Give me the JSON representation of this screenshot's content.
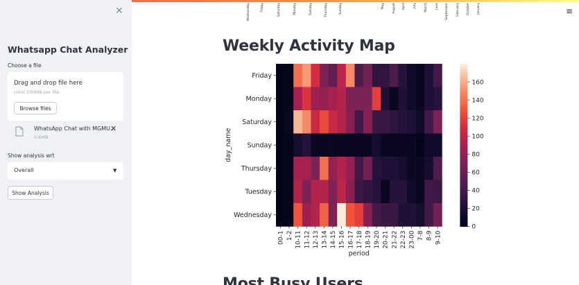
{
  "sidebar": {
    "title": "Whatsapp Chat Analyzer",
    "choose_file_label": "Choose a file",
    "uploader": {
      "drag_text": "Drag and drop file here",
      "limit_text": "Limit 200MB per file",
      "browse_label": "Browse files"
    },
    "file": {
      "name": "WhatsApp Chat with MGMU...",
      "size": "0.6MB"
    },
    "analysis_label": "Show analysis wrt",
    "analysis_select": {
      "value": "Overall"
    },
    "show_button": "Show Analysis"
  },
  "previous_chart_labels": [
    "Wednesday",
    "Friday",
    "Saturday",
    "Monday",
    "Tuesday",
    "Thursday",
    "Sunday",
    "May",
    "August",
    "April",
    "July",
    "March",
    "June",
    "September",
    "February",
    "October",
    "January"
  ],
  "main": {
    "heading": "Weekly Activity Map",
    "next_heading": "Most Busy Users"
  },
  "icons": {
    "close": "close-icon",
    "menu": "hamburger-menu-icon",
    "file": "file-icon",
    "remove": "remove-x-icon",
    "caret": "chevron-down-icon"
  },
  "chart_data": {
    "type": "heatmap",
    "title": "",
    "xlabel": "period",
    "ylabel": "day_name",
    "x": [
      "00-1",
      "1-2",
      "10-11",
      "11-12",
      "12-13",
      "13-14",
      "14-15",
      "15-16",
      "16-17",
      "17-18",
      "18-19",
      "19-20",
      "20-21",
      "21-22",
      "22-23",
      "23-00",
      "7-8",
      "8-9",
      "9-10"
    ],
    "y": [
      "Friday",
      "Monday",
      "Saturday",
      "Sunday",
      "Thursday",
      "Tuesday",
      "Wednesday"
    ],
    "values": [
      [
        0,
        0,
        140,
        155,
        110,
        70,
        55,
        100,
        150,
        45,
        65,
        30,
        30,
        45,
        25,
        10,
        5,
        20,
        40
      ],
      [
        0,
        0,
        90,
        115,
        85,
        80,
        90,
        95,
        70,
        70,
        70,
        120,
        20,
        5,
        20,
        10,
        5,
        20,
        25
      ],
      [
        0,
        5,
        165,
        150,
        105,
        125,
        105,
        95,
        75,
        40,
        75,
        35,
        35,
        30,
        25,
        20,
        10,
        40,
        70
      ],
      [
        0,
        0,
        15,
        25,
        5,
        5,
        5,
        5,
        5,
        5,
        5,
        15,
        5,
        5,
        5,
        5,
        0,
        10,
        10
      ],
      [
        0,
        0,
        90,
        90,
        70,
        140,
        80,
        95,
        80,
        40,
        65,
        25,
        20,
        20,
        15,
        5,
        5,
        15,
        45
      ],
      [
        0,
        0,
        95,
        70,
        95,
        95,
        70,
        100,
        75,
        35,
        30,
        25,
        5,
        25,
        25,
        10,
        5,
        40,
        35
      ],
      [
        0,
        0,
        130,
        85,
        95,
        135,
        70,
        180,
        130,
        120,
        75,
        40,
        35,
        35,
        20,
        20,
        15,
        40,
        65
      ]
    ],
    "colorbar": {
      "min": 0,
      "max": 180,
      "ticks": [
        0,
        20,
        40,
        60,
        80,
        100,
        120,
        140,
        160
      ]
    },
    "colormap": "rocket"
  }
}
